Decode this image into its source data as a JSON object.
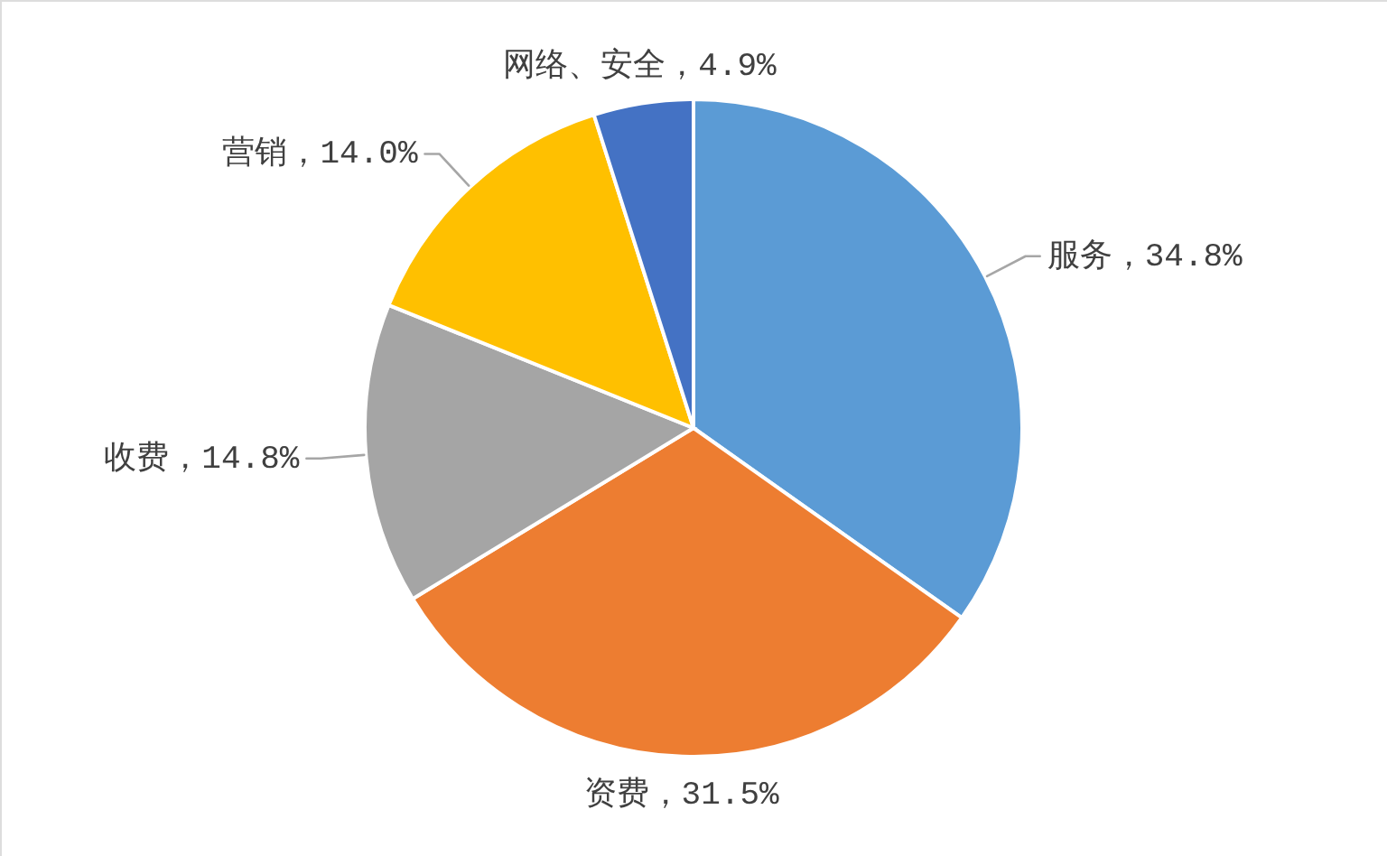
{
  "chart_data": {
    "type": "pie",
    "categories": [
      "服务",
      "资费",
      "收费",
      "营销",
      "网络、安全"
    ],
    "values": [
      34.8,
      31.5,
      14.8,
      14.0,
      4.9
    ],
    "colors": [
      "#5b9bd5",
      "#ed7d31",
      "#a5a5a5",
      "#ffc000",
      "#4472c4"
    ],
    "value_labels": [
      "34.8%",
      "31.5%",
      "14.8%",
      "14.0%",
      "4.9%"
    ]
  }
}
